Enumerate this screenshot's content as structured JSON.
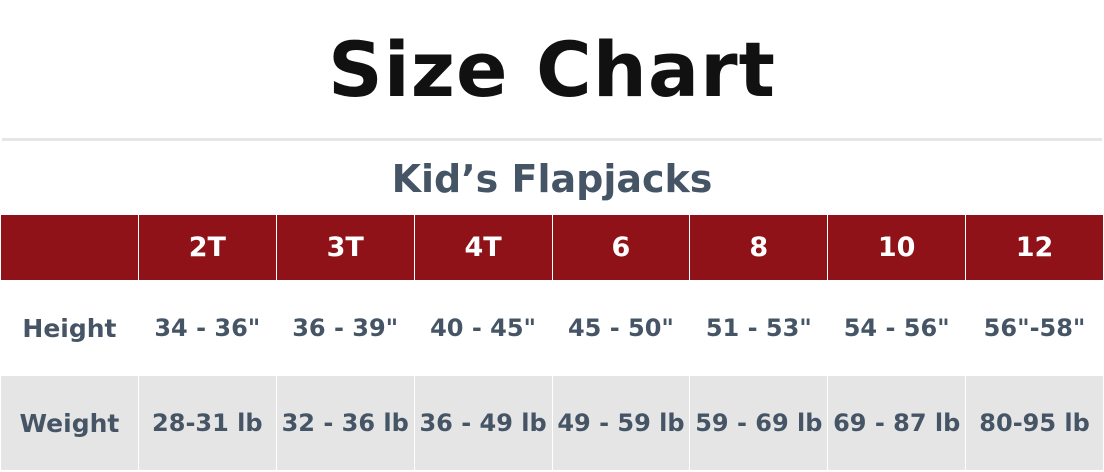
{
  "title": "Size Chart",
  "subtitle": "Kid’s Flapjacks",
  "colors": {
    "header_bg": "#8f1218",
    "text": "#465566",
    "alt_row": "#e5e5e5"
  },
  "table": {
    "headers": [
      "",
      "2T",
      "3T",
      "4T",
      "6",
      "8",
      "10",
      "12"
    ],
    "rows": [
      {
        "label": "Height",
        "values": [
          "34 - 36\"",
          "36 - 39\"",
          "40 - 45\"",
          "45 - 50\"",
          "51 - 53\"",
          "54 - 56\"",
          "56\"-58\""
        ]
      },
      {
        "label": "Weight",
        "values": [
          "28-31 lb",
          "32 - 36 lb",
          "36 - 49 lb",
          "49 - 59 lb",
          "59 - 69 lb",
          "69 - 87 lb",
          "80-95 lb"
        ]
      }
    ]
  }
}
